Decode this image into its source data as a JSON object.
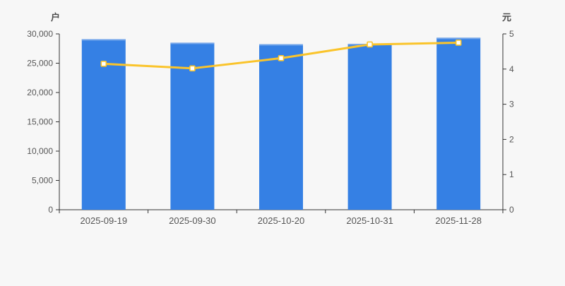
{
  "chart_data": {
    "type": "bar",
    "categories": [
      "2025-09-19",
      "2025-09-30",
      "2025-10-20",
      "2025-10-31",
      "2025-11-28"
    ],
    "series": [
      {
        "name": "bar-series",
        "type": "bar",
        "axis": "left",
        "values": [
          29100,
          28500,
          28250,
          28300,
          29350
        ],
        "color": "#3580e4",
        "cap_color": "#74a6ea"
      },
      {
        "name": "line-series",
        "type": "line",
        "axis": "right",
        "values": [
          4.15,
          4.02,
          4.31,
          4.7,
          4.75
        ],
        "color": "#fac42b",
        "marker_fill": "#ffffff"
      }
    ],
    "left_axis": {
      "label": "户",
      "min": 0,
      "max": 30000,
      "tick_values": [
        0,
        5000,
        10000,
        15000,
        20000,
        25000,
        30000
      ],
      "tick_labels": [
        "0",
        "5,000",
        "10,000",
        "15,000",
        "20,000",
        "25,000",
        "30,000"
      ]
    },
    "right_axis": {
      "label": "元",
      "min": 0,
      "max": 5,
      "tick_values": [
        0,
        1,
        2,
        3,
        4,
        5
      ],
      "tick_labels": [
        "0",
        "1",
        "2",
        "3",
        "4",
        "5"
      ]
    },
    "title": "",
    "legend": "none",
    "grid": "off",
    "colors": {
      "background": "#f7f7f7",
      "axis_line": "#333333",
      "tick_text": "#555555"
    }
  }
}
